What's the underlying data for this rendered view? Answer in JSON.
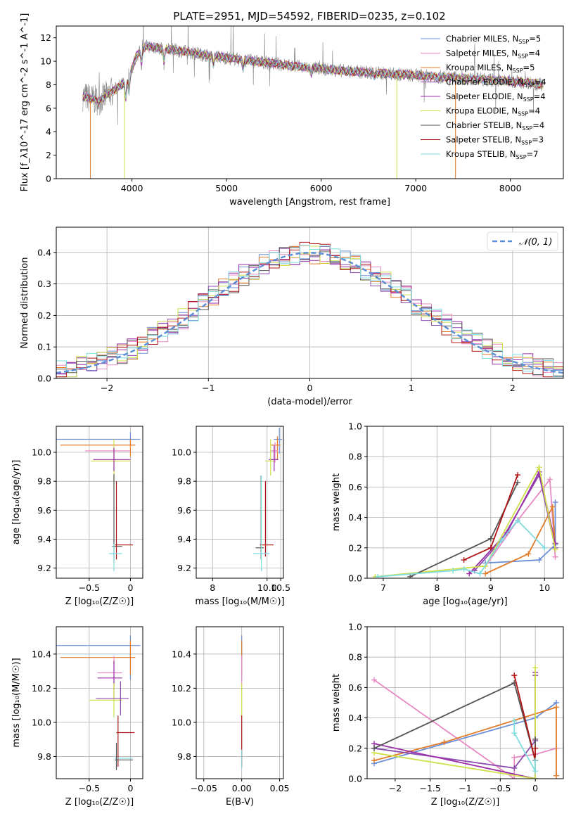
{
  "colors": {
    "Chabrier MILES": "#6b8fd6",
    "Salpeter MILES": "#e78ac3",
    "Kroupa MILES": "#e07b2a",
    "Chabrier ELODIE": "#8d4bb0",
    "Salpeter ELODIE": "#9a2fa8",
    "Kroupa ELODIE": "#cfe04a",
    "Chabrier STELIB": "#555555",
    "Salpeter STELIB": "#b01515",
    "Kroupa STELIB": "#7fdde0",
    "normal_curve": "#5b8fd6",
    "grid": "#b0b0b0"
  },
  "chart_data": [
    {
      "id": "spectrum",
      "type": "line",
      "title": "PLATE=2951, MJD=54592, FIBERID=0235, z=0.102",
      "xlabel": "wavelength [Angstrom, rest frame]",
      "ylabel": "Flux [f_λ10^-17 erg cm^-2 s^-1 A^-1]",
      "xlim": [
        3200,
        8560
      ],
      "ylim": [
        0,
        13
      ],
      "xticks": [
        4000,
        5000,
        6000,
        7000,
        8000
      ],
      "yticks": [
        0,
        2,
        4,
        6,
        8,
        10,
        12
      ],
      "grid": false,
      "legend_position": "top-right",
      "legend": [
        {
          "label": "Chabrier MILES, N",
          "sub": "SSP",
          "suffix": "=5"
        },
        {
          "label": "Salpeter MILES, N",
          "sub": "SSP",
          "suffix": "=4"
        },
        {
          "label": "Kroupa MILES, N",
          "sub": "SSP",
          "suffix": "=5"
        },
        {
          "label": "Chabrier ELODIE, N",
          "sub": "SSP",
          "suffix": "=4"
        },
        {
          "label": "Salpeter ELODIE, N",
          "sub": "SSP",
          "suffix": "=4"
        },
        {
          "label": "Kroupa ELODIE, N",
          "sub": "SSP",
          "suffix": "=4"
        },
        {
          "label": "Chabrier STELIB, N",
          "sub": "SSP",
          "suffix": "=4"
        },
        {
          "label": "Salpeter STELIB, N",
          "sub": "SSP",
          "suffix": "=3"
        },
        {
          "label": "Kroupa STELIB, N",
          "sub": "SSP",
          "suffix": "=7"
        }
      ],
      "continuum": {
        "x": [
          3500,
          3650,
          3800,
          3950,
          4050,
          4150,
          4300,
          4500,
          4800,
          5100,
          5400,
          5800,
          6200,
          6600,
          7000,
          7400,
          7800,
          8200,
          8350
        ],
        "y": [
          7.0,
          6.6,
          7.5,
          8.3,
          10.5,
          11.3,
          11.1,
          10.9,
          10.5,
          10.2,
          9.9,
          9.5,
          9.2,
          9.0,
          8.8,
          8.6,
          8.4,
          8.2,
          8.0
        ]
      }
    },
    {
      "id": "residuals",
      "type": "histogram",
      "xlabel": "(data-model)/error",
      "ylabel": "Normed distribution",
      "xlim": [
        -2.5,
        2.5
      ],
      "ylim": [
        0,
        0.48
      ],
      "xticks": [
        -2,
        -1,
        0,
        1,
        2
      ],
      "yticks": [
        0.0,
        0.1,
        0.2,
        0.3,
        0.4
      ],
      "grid": true,
      "legend": "𝒩(0, 1)",
      "legend_position": "top-right",
      "bin_width": 0.1
    },
    {
      "id": "age_vs_Z",
      "type": "errorbar",
      "xlabel": "Z [log₁₀(Z/Z☉)]",
      "ylabel": "age  [log₁₀(age/yr)]",
      "xlim": [
        -0.9,
        0.15
      ],
      "ylim": [
        9.13,
        10.18
      ],
      "xticks": [
        -0.5,
        0.0
      ],
      "yticks": [
        9.2,
        9.4,
        9.6,
        9.8,
        10.0
      ],
      "grid": true,
      "points": [
        {
          "series": "Chabrier MILES",
          "x": 0.0,
          "xerr": [
            0.9,
            0.12
          ],
          "y": 10.09,
          "yerr": [
            0.04,
            0.05
          ]
        },
        {
          "series": "Kroupa MILES",
          "x": 0.0,
          "xerr": [
            0.85,
            0.06
          ],
          "y": 10.05,
          "yerr": [
            0.08,
            0.04
          ]
        },
        {
          "series": "Salpeter MILES",
          "x": -0.2,
          "xerr": [
            0.35,
            0.2
          ],
          "y": 10.01,
          "yerr": [
            0.05,
            0.05
          ]
        },
        {
          "series": "Kroupa ELODIE",
          "x": -0.2,
          "xerr": [
            0.28,
            0.2
          ],
          "y": 9.94,
          "yerr": [
            0.18,
            0.15
          ]
        },
        {
          "series": "Salpeter ELODIE",
          "x": -0.2,
          "xerr": [
            0.25,
            0.2
          ],
          "y": 9.95,
          "yerr": [
            0.08,
            0.08
          ]
        },
        {
          "series": "Chabrier STELIB",
          "x": -0.2,
          "xerr": [
            0.02,
            0.1
          ],
          "y": 9.35,
          "yerr": [
            0.1,
            0.5
          ]
        },
        {
          "series": "Salpeter STELIB",
          "x": -0.17,
          "xerr": [
            0.02,
            0.2
          ],
          "y": 9.36,
          "yerr": [
            0.1,
            0.44
          ]
        },
        {
          "series": "Kroupa STELIB",
          "x": -0.2,
          "xerr": [
            0.06,
            0.1
          ],
          "y": 9.3,
          "yerr": [
            0.12,
            0.07
          ]
        }
      ]
    },
    {
      "id": "age_vs_mass",
      "type": "errorbar",
      "xlabel": "mass [log₁₀(M/M☉)]",
      "ylabel": "",
      "xlim": [
        7.4,
        10.6
      ],
      "ylim": [
        9.13,
        10.18
      ],
      "xticks": [
        8,
        10,
        10.5
      ],
      "xticklabels": [
        "8",
        "10.0",
        "10.5"
      ],
      "yticks": [
        9.2,
        9.4,
        9.6,
        9.8,
        10.0
      ],
      "grid": true,
      "points": [
        {
          "series": "Chabrier MILES",
          "x": 10.45,
          "xerr": [
            0.2,
            0.1
          ],
          "y": 10.09,
          "yerr": [
            0.1,
            0.08
          ]
        },
        {
          "series": "Kroupa MILES",
          "x": 10.38,
          "xerr": [
            0.25,
            0.1
          ],
          "y": 10.05,
          "yerr": [
            0.1,
            0.06
          ]
        },
        {
          "series": "Salpeter MILES",
          "x": 10.29,
          "xerr": [
            0.15,
            0.1
          ],
          "y": 10.01,
          "yerr": [
            0.08,
            0.06
          ]
        },
        {
          "series": "Salpeter ELODIE",
          "x": 10.26,
          "xerr": [
            0.2,
            0.15
          ],
          "y": 9.95,
          "yerr": [
            0.08,
            0.1
          ]
        },
        {
          "series": "Kroupa ELODIE",
          "x": 10.13,
          "xerr": [
            0.2,
            0.12
          ],
          "y": 9.94,
          "yerr": [
            0.1,
            0.15
          ]
        },
        {
          "series": "Chabrier STELIB",
          "x": 9.78,
          "xerr": [
            0.2,
            0.1
          ],
          "y": 9.34,
          "yerr": [
            0.08,
            0.5
          ]
        },
        {
          "series": "Salpeter STELIB",
          "x": 9.94,
          "xerr": [
            0.2,
            0.3
          ],
          "y": 9.36,
          "yerr": [
            0.08,
            0.44
          ]
        },
        {
          "series": "Kroupa STELIB",
          "x": 9.79,
          "xerr": [
            0.3,
            0.3
          ],
          "y": 9.3,
          "yerr": [
            0.12,
            0.54
          ]
        }
      ]
    },
    {
      "id": "mass_weight_vs_age",
      "type": "line",
      "xlabel": "age  [log₁₀(age/yr)]",
      "ylabel": "mass weight",
      "xlim": [
        6.7,
        10.35
      ],
      "ylim": [
        0,
        1.0
      ],
      "xticks": [
        7,
        8,
        9,
        10
      ],
      "yticks": [
        0.0,
        0.2,
        0.4,
        0.6,
        0.8,
        1.0
      ],
      "grid": true,
      "series": [
        {
          "name": "Chabrier MILES",
          "x": [
            8.9,
            9.9,
            10.2,
            10.2
          ],
          "y": [
            0.1,
            0.12,
            0.22,
            0.5
          ]
        },
        {
          "name": "Salpeter MILES",
          "x": [
            8.9,
            9.5,
            10.1,
            10.2
          ],
          "y": [
            0.08,
            0.38,
            0.65,
            0.14
          ]
        },
        {
          "name": "Kroupa MILES",
          "x": [
            8.9,
            9.7,
            10.15,
            10.2
          ],
          "y": [
            0.03,
            0.16,
            0.47,
            0.2
          ]
        },
        {
          "name": "Chabrier ELODIE",
          "x": [
            8.7,
            9.2,
            9.9,
            10.2
          ],
          "y": [
            0.05,
            0.25,
            0.68,
            0.2
          ]
        },
        {
          "name": "Salpeter ELODIE",
          "x": [
            8.6,
            9.3,
            9.9,
            10.2
          ],
          "y": [
            0.03,
            0.3,
            0.7,
            0.23
          ]
        },
        {
          "name": "Kroupa ELODIE",
          "x": [
            6.85,
            8.9,
            9.9,
            10.2
          ],
          "y": [
            0.01,
            0.08,
            0.73,
            0.19
          ]
        },
        {
          "name": "Chabrier STELIB",
          "x": [
            7.5,
            9.0,
            9.5
          ],
          "y": [
            0.01,
            0.26,
            0.63
          ]
        },
        {
          "name": "Salpeter STELIB",
          "x": [
            8.5,
            9.0,
            9.5
          ],
          "y": [
            0.12,
            0.2,
            0.68
          ]
        },
        {
          "name": "Kroupa STELIB",
          "x": [
            6.9,
            8.3,
            8.5,
            8.8,
            9.2,
            9.5,
            10.0
          ],
          "y": [
            0.01,
            0.05,
            0.06,
            0.03,
            0.25,
            0.38,
            0.2
          ]
        }
      ]
    },
    {
      "id": "mass_vs_Z",
      "type": "errorbar",
      "xlabel": "Z [log₁₀(Z/Z☉)]",
      "ylabel": "mass [log₁₀(M/M☉)]",
      "xlim": [
        -0.9,
        0.15
      ],
      "ylim": [
        9.67,
        10.56
      ],
      "xticks": [
        -0.5,
        0.0
      ],
      "yticks": [
        9.8,
        10.0,
        10.2,
        10.4
      ],
      "grid": true,
      "points": [
        {
          "series": "Chabrier MILES",
          "x": 0.0,
          "xerr": [
            0.9,
            0.12
          ],
          "y": 10.45,
          "yerr": [
            0.2,
            0.06
          ]
        },
        {
          "series": "Kroupa MILES",
          "x": 0.0,
          "xerr": [
            0.85,
            0.06
          ],
          "y": 10.38,
          "yerr": [
            0.1,
            0.1
          ]
        },
        {
          "series": "Salpeter MILES",
          "x": -0.2,
          "xerr": [
            0.2,
            0.1
          ],
          "y": 10.29,
          "yerr": [
            0.1,
            0.1
          ]
        },
        {
          "series": "Salpeter ELODIE",
          "x": -0.2,
          "xerr": [
            0.2,
            0.1
          ],
          "y": 10.26,
          "yerr": [
            0.12,
            0.1
          ]
        },
        {
          "series": "Kroupa ELODIE",
          "x": -0.2,
          "xerr": [
            0.3,
            0.1
          ],
          "y": 10.13,
          "yerr": [
            0.1,
            0.1
          ]
        },
        {
          "series": "Chabrier ELODIE",
          "x": -0.12,
          "xerr": [
            0.3,
            0.1
          ],
          "y": 10.14,
          "yerr": [
            0.1,
            0.1
          ]
        },
        {
          "series": "Salpeter STELIB",
          "x": -0.15,
          "xerr": [
            0.02,
            0.2
          ],
          "y": 9.94,
          "yerr": [
            0.2,
            0.1
          ]
        },
        {
          "series": "Kroupa STELIB",
          "x": -0.17,
          "xerr": [
            0.02,
            0.2
          ],
          "y": 9.79,
          "yerr": [
            0.06,
            0.05
          ]
        },
        {
          "series": "Chabrier STELIB",
          "x": -0.17,
          "xerr": [
            0.02,
            0.2
          ],
          "y": 9.78,
          "yerr": [
            0.06,
            0.1
          ]
        }
      ]
    },
    {
      "id": "mass_vs_ebv",
      "type": "errorbar",
      "xlabel": "E(B-V)",
      "ylabel": "",
      "xlim": [
        -0.06,
        0.055
      ],
      "ylim": [
        9.67,
        10.56
      ],
      "xticks": [
        -0.05,
        0.0,
        0.05
      ],
      "xticklabels": [
        "−0.05",
        "0.00",
        "0.05"
      ],
      "yticks": [
        9.8,
        10.0,
        10.2,
        10.4
      ],
      "grid": true,
      "points": [
        {
          "series": "Chabrier MILES",
          "x": 0.0,
          "xerr": [
            0,
            0
          ],
          "y": 10.45,
          "yerr": [
            0.2,
            0.06
          ]
        },
        {
          "series": "Kroupa MILES",
          "x": 0.0,
          "xerr": [
            0,
            0
          ],
          "y": 10.38,
          "yerr": [
            0.1,
            0.1
          ]
        },
        {
          "series": "Salpeter MILES",
          "x": 0.0,
          "xerr": [
            0,
            0
          ],
          "y": 10.29,
          "yerr": [
            0.1,
            0.1
          ]
        },
        {
          "series": "Kroupa ELODIE",
          "x": 0.0,
          "xerr": [
            0,
            0
          ],
          "y": 10.13,
          "yerr": [
            0.1,
            0.1
          ]
        },
        {
          "series": "Salpeter STELIB",
          "x": 0.0,
          "xerr": [
            0,
            0
          ],
          "y": 9.94,
          "yerr": [
            0.2,
            0.1
          ]
        },
        {
          "series": "Kroupa STELIB",
          "x": 0.0,
          "xerr": [
            0,
            0
          ],
          "y": 9.79,
          "yerr": [
            0.06,
            0.05
          ]
        }
      ]
    },
    {
      "id": "mass_weight_vs_Z",
      "type": "line",
      "xlabel": "Z [log₁₀(Z/Z☉)]",
      "ylabel": "mass weight",
      "xlim": [
        -2.4,
        0.4
      ],
      "ylim": [
        0,
        1.0
      ],
      "xticks": [
        -2.0,
        -1.5,
        -1.0,
        -0.5,
        0.0
      ],
      "yticks": [
        0.0,
        0.2,
        0.4,
        0.6,
        0.8,
        1.0
      ],
      "grid": true,
      "series": [
        {
          "name": "Chabrier MILES",
          "x": [
            -2.3,
            0.0,
            0.3
          ],
          "y": [
            0.1,
            0.4,
            0.5
          ]
        },
        {
          "name": "Salpeter MILES",
          "x": [
            -2.3,
            -0.3,
            -0.3,
            0.0,
            0.3
          ],
          "y": [
            0.65,
            0.0,
            0.14,
            0.16,
            0.2
          ]
        },
        {
          "name": "Kroupa MILES",
          "x": [
            -2.3,
            -1.3,
            0.3,
            0.3
          ],
          "y": [
            0.12,
            0.24,
            0.47,
            0.02
          ]
        },
        {
          "name": "Chabrier ELODIE",
          "x": [
            -2.3,
            -0.3,
            0.0,
            0.0
          ],
          "y": [
            0.2,
            0.07,
            0.25,
            0.68
          ]
        },
        {
          "name": "Salpeter ELODIE",
          "x": [
            -2.3,
            0.0,
            0.0
          ],
          "y": [
            0.23,
            0.0,
            0.7
          ]
        },
        {
          "name": "Kroupa ELODIE",
          "x": [
            -2.3,
            0.0,
            0.0
          ],
          "y": [
            0.17,
            0.0,
            0.73
          ]
        },
        {
          "name": "Chabrier STELIB",
          "x": [
            -2.3,
            -0.3,
            0.0,
            0.0
          ],
          "y": [
            0.2,
            0.63,
            0.12,
            0.26
          ]
        },
        {
          "name": "Salpeter STELIB",
          "x": [
            -0.3,
            0.0,
            0.0
          ],
          "y": [
            0.68,
            0.12,
            0.2
          ]
        },
        {
          "name": "Kroupa STELIB",
          "x": [
            -0.3,
            -0.3,
            0.0,
            0.0
          ],
          "y": [
            0.38,
            0.3,
            0.05,
            0.12
          ]
        }
      ]
    }
  ]
}
